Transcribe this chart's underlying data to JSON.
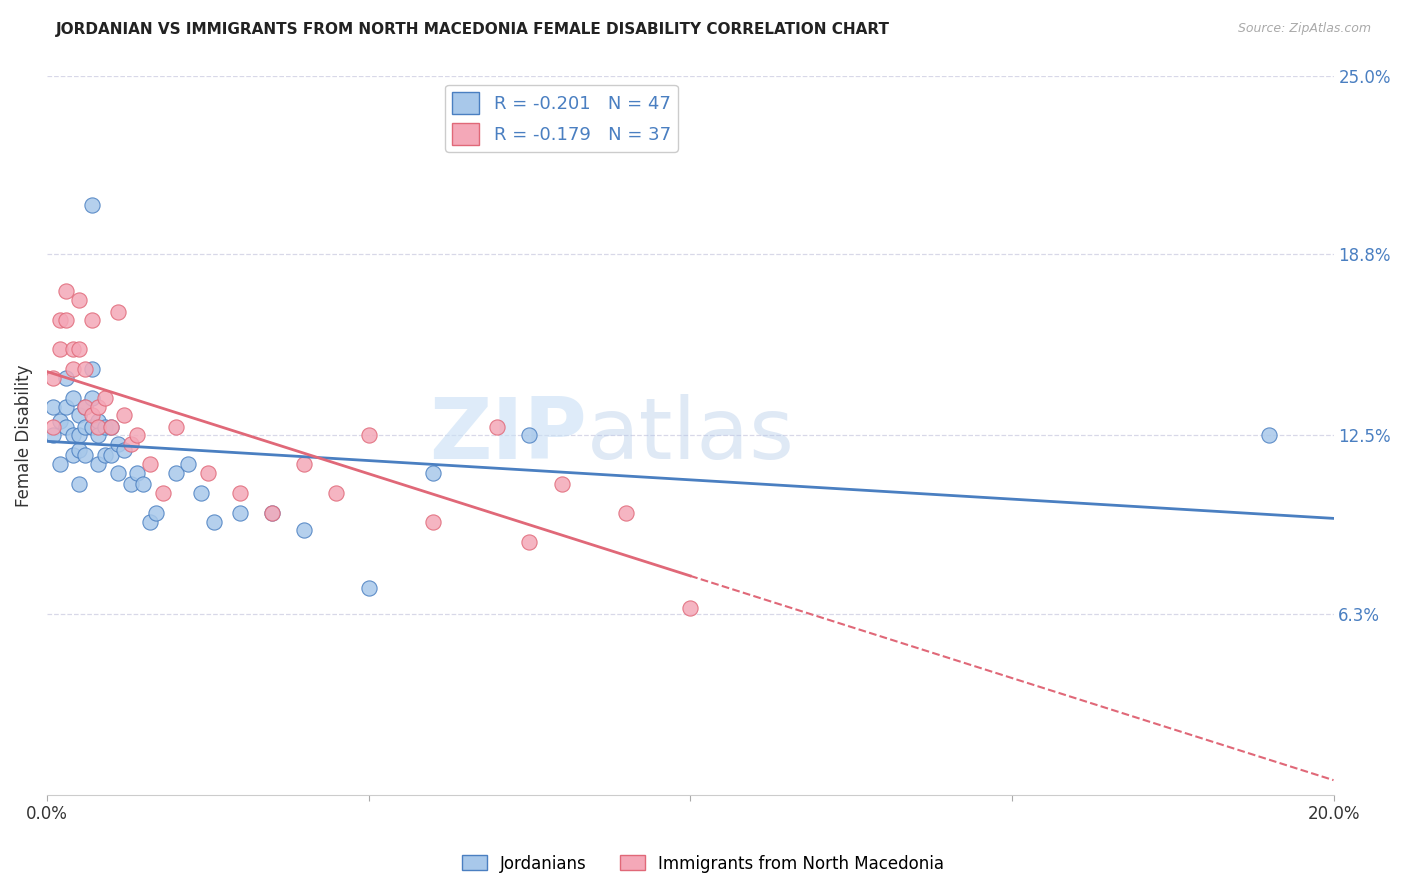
{
  "title": "JORDANIAN VS IMMIGRANTS FROM NORTH MACEDONIA FEMALE DISABILITY CORRELATION CHART",
  "source": "Source: ZipAtlas.com",
  "ylabel": "Female Disability",
  "xlim": [
    0.0,
    0.2
  ],
  "ylim": [
    0.0,
    0.25
  ],
  "ytick_labels_right": [
    "25.0%",
    "18.8%",
    "12.5%",
    "6.3%"
  ],
  "ytick_values_right": [
    0.25,
    0.188,
    0.125,
    0.063
  ],
  "jordanians_R": "-0.201",
  "jordanians_N": "47",
  "macedonia_R": "-0.179",
  "macedonia_N": "37",
  "color_jordan": "#a8c8ea",
  "color_macedonia": "#f4a8b8",
  "color_jordan_line": "#4a7fc1",
  "color_macedonia_line": "#e06878",
  "watermark_zip": "ZIP",
  "watermark_atlas": "atlas",
  "background_color": "#ffffff",
  "grid_color": "#d8d8e8",
  "jordanians_x": [
    0.001,
    0.001,
    0.002,
    0.002,
    0.003,
    0.003,
    0.003,
    0.004,
    0.004,
    0.004,
    0.005,
    0.005,
    0.005,
    0.005,
    0.006,
    0.006,
    0.006,
    0.007,
    0.007,
    0.007,
    0.007,
    0.008,
    0.008,
    0.008,
    0.009,
    0.009,
    0.01,
    0.01,
    0.011,
    0.011,
    0.012,
    0.013,
    0.014,
    0.015,
    0.016,
    0.017,
    0.02,
    0.022,
    0.024,
    0.026,
    0.03,
    0.035,
    0.04,
    0.05,
    0.06,
    0.075,
    0.19
  ],
  "jordanians_y": [
    0.135,
    0.125,
    0.13,
    0.115,
    0.145,
    0.135,
    0.128,
    0.138,
    0.125,
    0.118,
    0.132,
    0.125,
    0.12,
    0.108,
    0.135,
    0.128,
    0.118,
    0.205,
    0.148,
    0.138,
    0.128,
    0.13,
    0.125,
    0.115,
    0.128,
    0.118,
    0.128,
    0.118,
    0.122,
    0.112,
    0.12,
    0.108,
    0.112,
    0.108,
    0.095,
    0.098,
    0.112,
    0.115,
    0.105,
    0.095,
    0.098,
    0.098,
    0.092,
    0.072,
    0.112,
    0.125,
    0.125
  ],
  "macedonia_x": [
    0.001,
    0.001,
    0.002,
    0.002,
    0.003,
    0.003,
    0.004,
    0.004,
    0.005,
    0.005,
    0.006,
    0.006,
    0.007,
    0.007,
    0.008,
    0.008,
    0.009,
    0.01,
    0.011,
    0.012,
    0.013,
    0.014,
    0.016,
    0.018,
    0.02,
    0.025,
    0.03,
    0.035,
    0.04,
    0.045,
    0.05,
    0.06,
    0.07,
    0.075,
    0.08,
    0.09,
    0.1
  ],
  "macedonia_y": [
    0.145,
    0.128,
    0.165,
    0.155,
    0.175,
    0.165,
    0.155,
    0.148,
    0.172,
    0.155,
    0.148,
    0.135,
    0.165,
    0.132,
    0.135,
    0.128,
    0.138,
    0.128,
    0.168,
    0.132,
    0.122,
    0.125,
    0.115,
    0.105,
    0.128,
    0.112,
    0.105,
    0.098,
    0.115,
    0.105,
    0.125,
    0.095,
    0.128,
    0.088,
    0.108,
    0.098,
    0.065
  ]
}
